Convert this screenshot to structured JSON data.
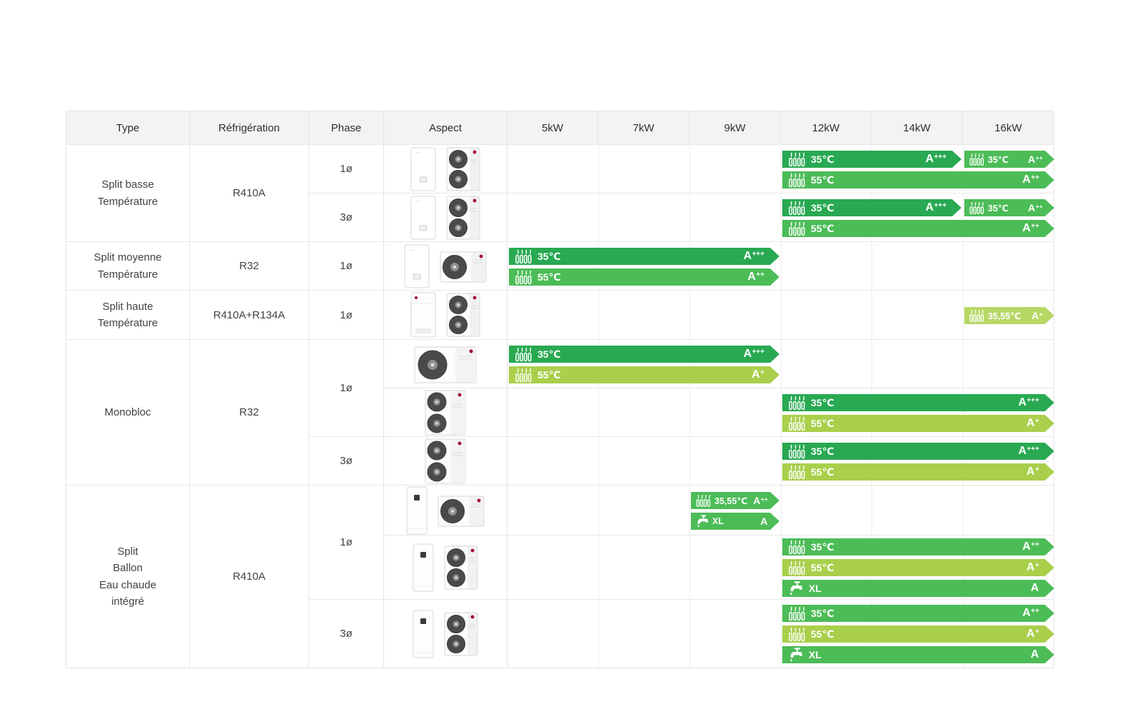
{
  "header": {
    "columns": [
      "Type",
      "Réfrigération",
      "Phase",
      "Aspect",
      "5kW",
      "7kW",
      "9kW",
      "12kW",
      "14kW",
      "16kW"
    ]
  },
  "colors": {
    "badge_green_dark": "#28a952",
    "badge_green_mid": "#4cbc57",
    "badge_green_lime": "#a9cf4b",
    "badge_green_pale": "#b7d765",
    "header_bg": "#f3f3f3",
    "grid_line": "#e7e7e7",
    "lg_logo_red": "#a50034",
    "fan_dark": "#4a4a4a"
  },
  "rows": [
    {
      "type": "Split basse\nTempérature",
      "type_rowspan": 2,
      "refrigeration": "R410A",
      "refrigeration_rowspan": 2,
      "phase": "1ø",
      "aspect": [
        "indoor-wall-unit",
        "outdoor-two-fan-unit"
      ],
      "badge_lines": [
        [
          {
            "icon": "radiator",
            "label": "35℃",
            "rating": "A+++",
            "color": "dark",
            "from": "12kW",
            "to": "14kW"
          },
          {
            "icon": "radiator",
            "label": "35℃",
            "rating": "A++",
            "color": "mid",
            "from": "16kW",
            "to": "16kW"
          }
        ],
        [
          {
            "icon": "radiator",
            "label": "55℃",
            "rating": "A++",
            "color": "mid",
            "from": "12kW",
            "to": "16kW"
          }
        ]
      ]
    },
    {
      "phase": "3ø",
      "aspect": [
        "indoor-wall-unit",
        "outdoor-two-fan-unit"
      ],
      "badge_lines": [
        [
          {
            "icon": "radiator",
            "label": "35℃",
            "rating": "A+++",
            "color": "dark",
            "from": "12kW",
            "to": "14kW"
          },
          {
            "icon": "radiator",
            "label": "35℃",
            "rating": "A++",
            "color": "mid",
            "from": "16kW",
            "to": "16kW"
          }
        ],
        [
          {
            "icon": "radiator",
            "label": "55℃",
            "rating": "A++",
            "color": "mid",
            "from": "12kW",
            "to": "16kW"
          }
        ]
      ]
    },
    {
      "type": "Split moyenne\nTempérature",
      "refrigeration": "R32",
      "phase": "1ø",
      "aspect": [
        "indoor-wall-unit",
        "outdoor-one-fan-unit"
      ],
      "badge_lines": [
        [
          {
            "icon": "radiator",
            "label": "35℃",
            "rating": "A+++",
            "color": "dark",
            "from": "5kW",
            "to": "9kW"
          }
        ],
        [
          {
            "icon": "radiator",
            "label": "55℃",
            "rating": "A++",
            "color": "mid",
            "from": "5kW",
            "to": "9kW"
          }
        ]
      ]
    },
    {
      "type": "Split haute\nTempérature",
      "refrigeration": "R410A+R134A",
      "phase": "1ø",
      "aspect": [
        "indoor-floor-unit",
        "outdoor-two-fan-unit"
      ],
      "badge_lines": [
        [
          {
            "icon": "radiator",
            "label": "35,55℃",
            "rating": "A+",
            "color": "pale",
            "from": "16kW",
            "to": "16kW"
          }
        ]
      ]
    },
    {
      "type": "Monobloc",
      "type_rowspan": 3,
      "refrigeration": "R32",
      "refrigeration_rowspan": 3,
      "phase": "1ø",
      "phase_rowspan": 2,
      "aspect": [
        "monobloc-side-unit"
      ],
      "badge_lines": [
        [
          {
            "icon": "radiator",
            "label": "35℃",
            "rating": "A+++",
            "color": "dark",
            "from": "5kW",
            "to": "9kW"
          }
        ],
        [
          {
            "icon": "radiator",
            "label": "55℃",
            "rating": "A+",
            "color": "lime",
            "from": "5kW",
            "to": "9kW"
          }
        ]
      ]
    },
    {
      "aspect": [
        "monobloc-front-unit"
      ],
      "badge_lines": [
        [
          {
            "icon": "radiator",
            "label": "35℃",
            "rating": "A+++",
            "color": "dark",
            "from": "12kW",
            "to": "16kW"
          }
        ],
        [
          {
            "icon": "radiator",
            "label": "55℃",
            "rating": "A+",
            "color": "lime",
            "from": "12kW",
            "to": "16kW"
          }
        ]
      ]
    },
    {
      "phase": "3ø",
      "aspect": [
        "monobloc-front-unit"
      ],
      "badge_lines": [
        [
          {
            "icon": "radiator",
            "label": "35℃",
            "rating": "A+++",
            "color": "dark",
            "from": "12kW",
            "to": "16kW"
          }
        ],
        [
          {
            "icon": "radiator",
            "label": "55℃",
            "rating": "A+",
            "color": "lime",
            "from": "12kW",
            "to": "16kW"
          }
        ]
      ]
    },
    {
      "type": "Split\nBallon\nEau chaude\nintégré",
      "type_rowspan": 3,
      "refrigeration": "R410A",
      "refrigeration_rowspan": 3,
      "phase": "1ø",
      "phase_rowspan": 2,
      "aspect": [
        "indoor-tank-unit",
        "outdoor-one-fan-unit"
      ],
      "badge_lines": [
        [
          {
            "icon": "radiator",
            "label": "35,55℃",
            "rating": "A++",
            "color": "mid",
            "from": "9kW",
            "to": "9kW"
          }
        ],
        [
          {
            "icon": "faucet",
            "label": "XL",
            "rating": "A",
            "color": "mid",
            "from": "9kW",
            "to": "9kW"
          }
        ]
      ]
    },
    {
      "aspect": [
        "indoor-tank-unit",
        "outdoor-two-fan-unit"
      ],
      "badge_lines": [
        [
          {
            "icon": "radiator",
            "label": "35℃",
            "rating": "A++",
            "color": "mid",
            "from": "12kW",
            "to": "16kW"
          }
        ],
        [
          {
            "icon": "radiator",
            "label": "55℃",
            "rating": "A+",
            "color": "lime",
            "from": "12kW",
            "to": "16kW"
          }
        ],
        [
          {
            "icon": "faucet",
            "label": "XL",
            "rating": "A",
            "color": "mid",
            "from": "12kW",
            "to": "16kW"
          }
        ]
      ]
    },
    {
      "phase": "3ø",
      "aspect": [
        "indoor-tank-unit",
        "outdoor-two-fan-unit"
      ],
      "badge_lines": [
        [
          {
            "icon": "radiator",
            "label": "35℃",
            "rating": "A++",
            "color": "mid",
            "from": "12kW",
            "to": "16kW"
          }
        ],
        [
          {
            "icon": "radiator",
            "label": "55℃",
            "rating": "A+",
            "color": "lime",
            "from": "12kW",
            "to": "16kW"
          }
        ],
        [
          {
            "icon": "faucet",
            "label": "XL",
            "rating": "A",
            "color": "mid",
            "from": "12kW",
            "to": "16kW"
          }
        ]
      ]
    }
  ]
}
